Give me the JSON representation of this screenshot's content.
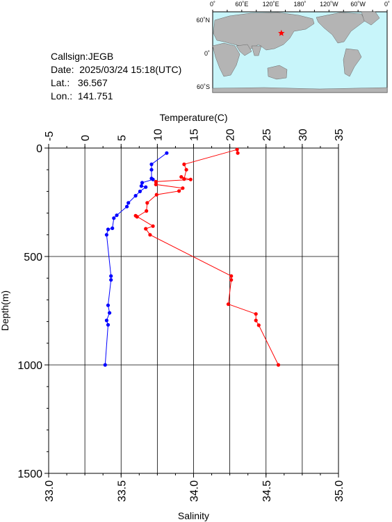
{
  "info": {
    "callsign": "Callsign:JEGB",
    "date": "Date:  2025/03/24 15:18(UTC)",
    "lat": "Lat.:   36.567",
    "lon": "Lon.:  141.751"
  },
  "map": {
    "lon_labels": [
      "0˚",
      "60˚E",
      "120˚E",
      "180˚",
      "120˚W",
      "60˚W",
      "0˚"
    ],
    "lat_labels": [
      "60˚N",
      "0˚",
      "60˚S"
    ],
    "ocean_color": "#c8f5fa",
    "land_color": "#b4b4b4",
    "marker": {
      "lat": 36.567,
      "lon": 141.751,
      "icon": "red-star-icon",
      "color": "#ff0000"
    }
  },
  "chart_data": {
    "type": "line",
    "top_axis": {
      "label": "Temperature(C)",
      "range": [
        -5,
        35
      ],
      "ticks": [
        -5,
        0,
        5,
        10,
        15,
        20,
        25,
        30,
        35
      ]
    },
    "bottom_axis": {
      "label": "Salinity",
      "range": [
        33.0,
        35.0
      ],
      "ticks": [
        "33.0",
        "33.5",
        "34.0",
        "34.5",
        "35.0"
      ]
    },
    "y_axis": {
      "label": "Depth(m)",
      "range": [
        0,
        1500
      ],
      "ticks": [
        0,
        500,
        1000,
        1500
      ],
      "inverted": true
    },
    "grid": true,
    "series": [
      {
        "axis": "temperature",
        "color": "#ff0000",
        "points": [
          [
            21.1,
            23
          ],
          [
            21.0,
            7
          ],
          [
            13.7,
            75
          ],
          [
            14.0,
            100
          ],
          [
            13.7,
            143
          ],
          [
            13.3,
            133
          ],
          [
            14.6,
            145
          ],
          [
            9.8,
            155
          ],
          [
            9.8,
            168
          ],
          [
            13.5,
            185
          ],
          [
            13.0,
            198
          ],
          [
            9.9,
            215
          ],
          [
            8.6,
            253
          ],
          [
            8.5,
            290
          ],
          [
            7.2,
            317
          ],
          [
            7.0,
            312
          ],
          [
            9.4,
            360
          ],
          [
            8.4,
            372
          ],
          [
            9.0,
            400
          ],
          [
            20.2,
            590
          ],
          [
            20.2,
            608
          ],
          [
            19.8,
            720
          ],
          [
            23.6,
            765
          ],
          [
            23.6,
            795
          ],
          [
            24.0,
            817
          ],
          [
            26.7,
            1000
          ]
        ]
      },
      {
        "axis": "salinity",
        "color": "#0000ff",
        "points": [
          [
            33.815,
            23
          ],
          [
            33.71,
            75
          ],
          [
            33.71,
            100
          ],
          [
            33.71,
            140
          ],
          [
            33.72,
            145
          ],
          [
            33.645,
            160
          ],
          [
            33.64,
            175
          ],
          [
            33.67,
            180
          ],
          [
            33.63,
            200
          ],
          [
            33.6,
            220
          ],
          [
            33.55,
            253
          ],
          [
            33.54,
            270
          ],
          [
            33.47,
            310
          ],
          [
            33.45,
            323
          ],
          [
            33.44,
            370
          ],
          [
            33.41,
            375
          ],
          [
            33.4,
            400
          ],
          [
            33.43,
            590
          ],
          [
            33.43,
            608
          ],
          [
            33.41,
            725
          ],
          [
            33.42,
            760
          ],
          [
            33.4,
            795
          ],
          [
            33.41,
            815
          ],
          [
            33.39,
            1000
          ]
        ]
      }
    ]
  }
}
